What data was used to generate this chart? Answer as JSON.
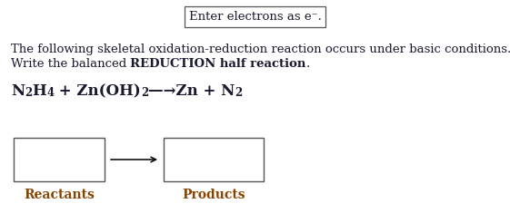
{
  "bg_color": "#ffffff",
  "top_box_text": "Enter electrons as e⁻.",
  "line1": "The following skeletal oxidation-reduction reaction occurs under basic conditions.",
  "line2_normal": "Write the balanced ",
  "line2_bold": "REDUCTION half reaction",
  "line2_end": ".",
  "reactants_label": "Reactants",
  "products_label": "Products",
  "text_color": "#1a1a2e",
  "label_color": "#8b4500",
  "font_size_top": 9.5,
  "font_size_main": 9.5,
  "font_size_reaction": 12,
  "font_size_label": 10,
  "fig_width": 5.61,
  "fig_height": 2.46,
  "dpi": 100
}
